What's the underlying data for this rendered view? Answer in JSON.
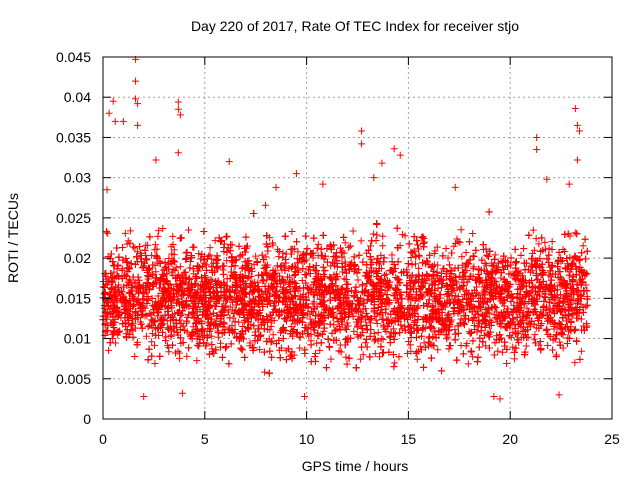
{
  "chart_data": {
    "type": "scatter",
    "title": "Day 220 of 2017, Rate Of TEC Index for receiver stjo",
    "xlabel": "GPS time / hours",
    "ylabel": "ROTI / TECUs",
    "xlim": [
      0,
      25
    ],
    "ylim": [
      0,
      0.045
    ],
    "x_ticks": [
      "0",
      "5",
      "10",
      "15",
      "20",
      "25"
    ],
    "y_ticks": [
      "0",
      "0.005",
      "0.01",
      "0.015",
      "0.02",
      "0.025",
      "0.03",
      "0.035",
      "0.04",
      "0.045"
    ],
    "grid": true,
    "marker": "+",
    "color": "#ff0000",
    "data_range_x": [
      0,
      23.8
    ],
    "typical_band_y": [
      0.005,
      0.025
    ],
    "series": [
      {
        "name": "ROTI",
        "points": [
          [
            0.3,
            0.038
          ],
          [
            0.5,
            0.0395
          ],
          [
            0.6,
            0.037
          ],
          [
            1.0,
            0.037
          ],
          [
            1.6,
            0.0447
          ],
          [
            1.6,
            0.042
          ],
          [
            1.6,
            0.0398
          ],
          [
            1.7,
            0.0392
          ],
          [
            1.7,
            0.0365
          ],
          [
            2.6,
            0.0322
          ],
          [
            3.7,
            0.0394
          ],
          [
            3.7,
            0.0385
          ],
          [
            3.8,
            0.0378
          ],
          [
            3.7,
            0.0331
          ],
          [
            6.2,
            0.032
          ],
          [
            12.7,
            0.0358
          ],
          [
            12.7,
            0.0342
          ],
          [
            13.7,
            0.0318
          ],
          [
            14.3,
            0.0336
          ],
          [
            14.6,
            0.0328
          ],
          [
            21.3,
            0.035
          ],
          [
            21.3,
            0.0335
          ],
          [
            23.2,
            0.0386
          ],
          [
            23.3,
            0.0365
          ],
          [
            23.4,
            0.0358
          ],
          [
            23.3,
            0.0322
          ],
          [
            2.0,
            0.0028
          ],
          [
            3.9,
            0.0032
          ],
          [
            9.9,
            0.0028
          ],
          [
            19.2,
            0.0028
          ],
          [
            19.5,
            0.0025
          ],
          [
            22.4,
            0.003
          ],
          [
            0.2,
            0.0285
          ],
          [
            8.5,
            0.0288
          ],
          [
            9.5,
            0.0305
          ],
          [
            10.8,
            0.0292
          ],
          [
            13.3,
            0.03
          ],
          [
            17.3,
            0.0288
          ],
          [
            21.8,
            0.0298
          ],
          [
            22.9,
            0.0292
          ]
        ]
      }
    ]
  }
}
